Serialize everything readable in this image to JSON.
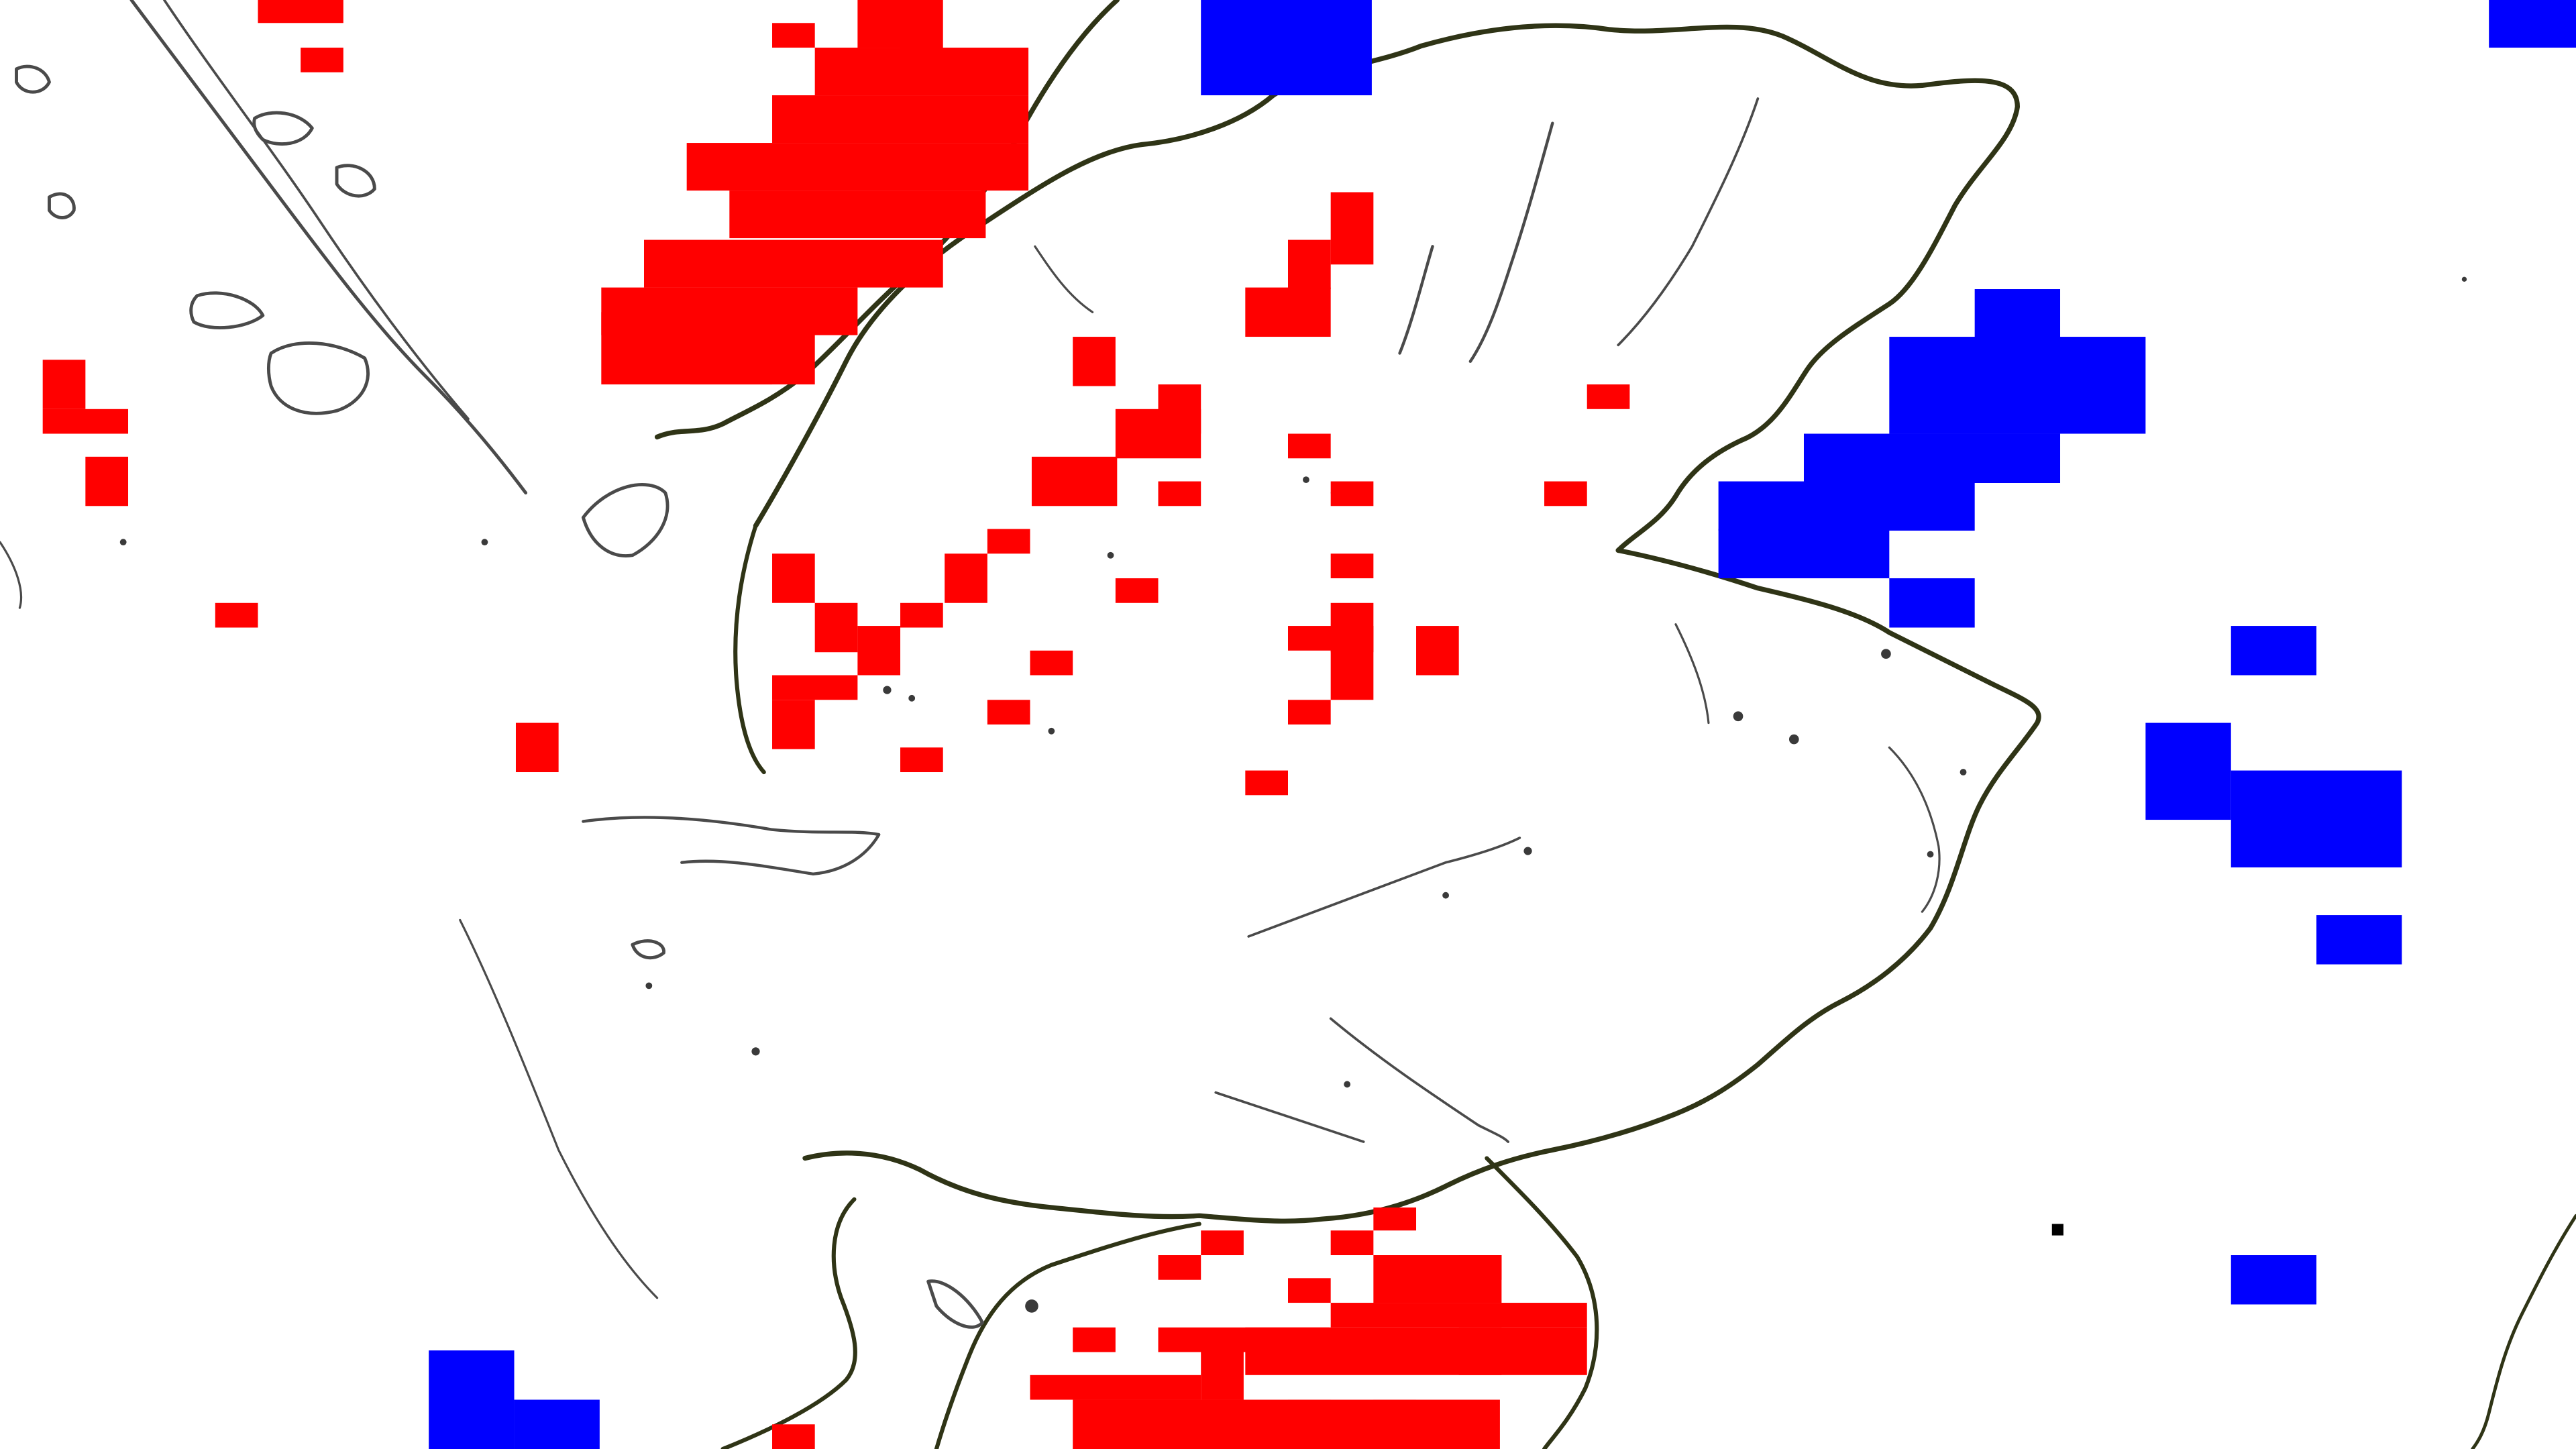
{
  "map": {
    "background_color": "#ffffff",
    "edge_color": "#2f3416",
    "detail_color": "#4a4a4a",
    "layers": [
      {
        "name": "red-cell-layer",
        "color": "#ff0000"
      },
      {
        "name": "blue-cell-layer",
        "color": "#0000ff"
      },
      {
        "name": "marker-layer",
        "color": "#000000"
      }
    ]
  }
}
